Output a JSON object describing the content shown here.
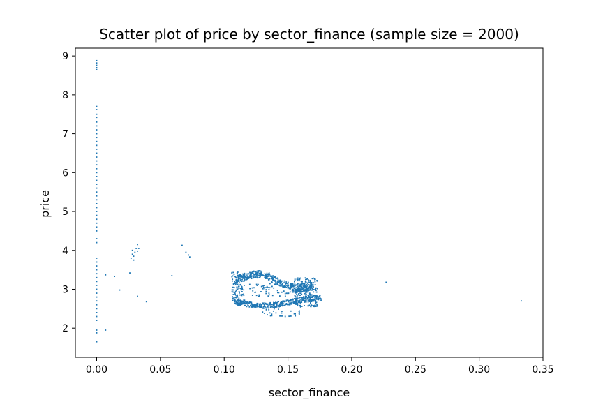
{
  "chart_data": {
    "type": "scatter",
    "title": "Scatter plot of price by sector_finance (sample size = 2000)",
    "xlabel": "sector_finance",
    "ylabel": "price",
    "xlim": [
      -0.0167,
      0.35
    ],
    "ylim": [
      1.25,
      9.2
    ],
    "xticks": [
      0.0,
      0.05,
      0.1,
      0.15,
      0.2,
      0.25,
      0.3,
      0.35
    ],
    "xtick_labels": [
      "0.00",
      "0.05",
      "0.10",
      "0.15",
      "0.20",
      "0.25",
      "0.30",
      "0.35"
    ],
    "yticks": [
      2,
      3,
      4,
      5,
      6,
      7,
      8,
      9
    ],
    "ytick_labels": [
      "2",
      "3",
      "4",
      "5",
      "6",
      "7",
      "8",
      "9"
    ],
    "grid": false,
    "legend": "none",
    "marker_color": "#1f77b4",
    "series": [
      {
        "values": [
          [
            0.0,
            8.88
          ],
          [
            0.0,
            8.82
          ],
          [
            0.0,
            8.76
          ],
          [
            0.0,
            8.7
          ],
          [
            0.0,
            8.65
          ],
          [
            0.0,
            7.7
          ],
          [
            0.0,
            7.62
          ],
          [
            0.0,
            7.5
          ],
          [
            0.0,
            7.42
          ],
          [
            0.0,
            7.3
          ],
          [
            0.0,
            7.2
          ],
          [
            0.0,
            7.1
          ],
          [
            0.0,
            7.0
          ],
          [
            0.0,
            6.9
          ],
          [
            0.0,
            6.8
          ],
          [
            0.0,
            6.7
          ],
          [
            0.0,
            6.6
          ],
          [
            0.0,
            6.5
          ],
          [
            0.0,
            6.4
          ],
          [
            0.0,
            6.3
          ],
          [
            0.0,
            6.2
          ],
          [
            0.0,
            6.1
          ],
          [
            0.0,
            6.0
          ],
          [
            0.0,
            5.9
          ],
          [
            0.0,
            5.8
          ],
          [
            0.0,
            5.7
          ],
          [
            0.0,
            5.6
          ],
          [
            0.0,
            5.5
          ],
          [
            0.0,
            5.4
          ],
          [
            0.0,
            5.3
          ],
          [
            0.0,
            5.2
          ],
          [
            0.0,
            5.1
          ],
          [
            0.0,
            5.0
          ],
          [
            0.0,
            4.9
          ],
          [
            0.0,
            4.8
          ],
          [
            0.0,
            4.7
          ],
          [
            0.0,
            4.6
          ],
          [
            0.0,
            4.5
          ],
          [
            0.0,
            4.3
          ],
          [
            0.0,
            4.2
          ],
          [
            0.0,
            3.8
          ],
          [
            0.0,
            3.7
          ],
          [
            0.0,
            3.6
          ],
          [
            0.0,
            3.5
          ],
          [
            0.0,
            3.4
          ],
          [
            0.0,
            3.3
          ],
          [
            0.0,
            3.2
          ],
          [
            0.0,
            3.1
          ],
          [
            0.0,
            3.0
          ],
          [
            0.0,
            2.9
          ],
          [
            0.0,
            2.8
          ],
          [
            0.0,
            2.7
          ],
          [
            0.0,
            2.6
          ],
          [
            0.0,
            2.5
          ],
          [
            0.0,
            2.4
          ],
          [
            0.0,
            2.3
          ],
          [
            0.0,
            2.2
          ],
          [
            0.0,
            1.95
          ],
          [
            0.0,
            1.88
          ],
          [
            0.0,
            1.65
          ],
          [
            0.007,
            3.37
          ],
          [
            0.007,
            1.95
          ],
          [
            0.014,
            3.33
          ],
          [
            0.018,
            2.98
          ],
          [
            0.026,
            3.42
          ],
          [
            0.032,
            2.82
          ],
          [
            0.039,
            2.68
          ],
          [
            0.027,
            3.8
          ],
          [
            0.028,
            3.9
          ],
          [
            0.028,
            4.0
          ],
          [
            0.029,
            3.85
          ],
          [
            0.03,
            3.95
          ],
          [
            0.031,
            4.05
          ],
          [
            0.032,
            4.15
          ],
          [
            0.032,
            3.98
          ],
          [
            0.033,
            4.05
          ],
          [
            0.029,
            3.75
          ],
          [
            0.059,
            3.35
          ],
          [
            0.067,
            4.13
          ],
          [
            0.07,
            3.95
          ],
          [
            0.072,
            3.88
          ],
          [
            0.073,
            3.83
          ],
          [
            0.227,
            3.18
          ],
          [
            0.333,
            2.7
          ]
        ]
      }
    ]
  }
}
